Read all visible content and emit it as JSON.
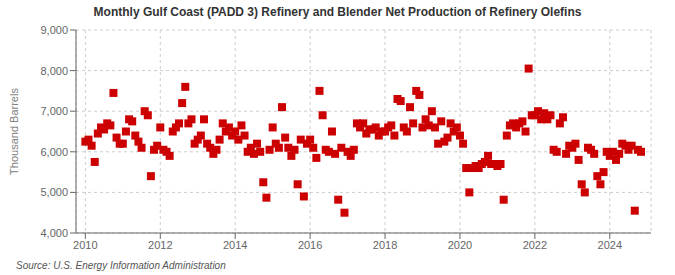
{
  "chart_data": {
    "type": "scatter",
    "title": "Monthly Gulf Coast (PADD 3) Refinery and Blender Net Production of Refinery Olefins",
    "y_label": "Thousand Barrels",
    "annotations": [
      "Source: U.S. Energy Information Administration"
    ],
    "color": "#cc0000",
    "marker": "square",
    "grid": true,
    "xlim": [
      2009.75,
      2025.1
    ],
    "xticks": [
      2010,
      2012,
      2014,
      2016,
      2018,
      2020,
      2022,
      2024
    ],
    "ylim": [
      4000,
      9000
    ],
    "yticks": [
      {
        "value": 4000,
        "label": "4,000"
      },
      {
        "value": 5000,
        "label": "5,000"
      },
      {
        "value": 6000,
        "label": "6,000"
      },
      {
        "value": 7000,
        "label": "7,000"
      },
      {
        "value": 8000,
        "label": "8,000"
      },
      {
        "value": 9000,
        "label": "9,000"
      }
    ],
    "x": [
      2010.0,
      2010.083,
      2010.167,
      2010.25,
      2010.333,
      2010.417,
      2010.5,
      2010.583,
      2010.667,
      2010.75,
      2010.833,
      2010.917,
      2011.0,
      2011.083,
      2011.167,
      2011.25,
      2011.333,
      2011.417,
      2011.5,
      2011.583,
      2011.667,
      2011.75,
      2011.833,
      2011.917,
      2012.0,
      2012.083,
      2012.167,
      2012.25,
      2012.333,
      2012.417,
      2012.5,
      2012.583,
      2012.667,
      2012.75,
      2012.833,
      2012.917,
      2013.0,
      2013.083,
      2013.167,
      2013.25,
      2013.333,
      2013.417,
      2013.5,
      2013.583,
      2013.667,
      2013.75,
      2013.833,
      2013.917,
      2014.0,
      2014.083,
      2014.167,
      2014.25,
      2014.333,
      2014.417,
      2014.5,
      2014.583,
      2014.667,
      2014.75,
      2014.833,
      2014.917,
      2015.0,
      2015.083,
      2015.167,
      2015.25,
      2015.333,
      2015.417,
      2015.5,
      2015.583,
      2015.667,
      2015.75,
      2015.833,
      2015.917,
      2016.0,
      2016.083,
      2016.167,
      2016.25,
      2016.333,
      2016.417,
      2016.5,
      2016.583,
      2016.667,
      2016.75,
      2016.833,
      2016.917,
      2017.0,
      2017.083,
      2017.167,
      2017.25,
      2017.333,
      2017.417,
      2017.5,
      2017.583,
      2017.667,
      2017.75,
      2017.833,
      2017.917,
      2018.0,
      2018.083,
      2018.167,
      2018.25,
      2018.333,
      2018.417,
      2018.5,
      2018.583,
      2018.667,
      2018.75,
      2018.833,
      2018.917,
      2019.0,
      2019.083,
      2019.167,
      2019.25,
      2019.333,
      2019.417,
      2019.5,
      2019.583,
      2019.667,
      2019.75,
      2019.833,
      2019.917,
      2020.0,
      2020.083,
      2020.167,
      2020.25,
      2020.333,
      2020.417,
      2020.5,
      2020.583,
      2020.667,
      2020.75,
      2020.833,
      2020.917,
      2021.0,
      2021.083,
      2021.167,
      2021.25,
      2021.333,
      2021.417,
      2021.5,
      2021.583,
      2021.667,
      2021.75,
      2021.833,
      2021.917,
      2022.0,
      2022.083,
      2022.167,
      2022.25,
      2022.333,
      2022.417,
      2022.5,
      2022.583,
      2022.667,
      2022.75,
      2022.833,
      2022.917,
      2023.0,
      2023.083,
      2023.167,
      2023.25,
      2023.333,
      2023.417,
      2023.5,
      2023.583,
      2023.667,
      2023.75,
      2023.833,
      2023.917,
      2024.0,
      2024.083,
      2024.167,
      2024.25,
      2024.333,
      2024.417,
      2024.5,
      2024.583,
      2024.667,
      2024.75,
      2024.833
    ],
    "values": [
      6250,
      6300,
      6150,
      5750,
      6450,
      6600,
      6550,
      6700,
      6650,
      7450,
      6350,
      6200,
      6200,
      6500,
      6800,
      6750,
      6400,
      6250,
      6100,
      7000,
      6900,
      5400,
      6050,
      6150,
      6600,
      6050,
      6000,
      5900,
      6500,
      6600,
      6700,
      7200,
      7600,
      6700,
      6800,
      6200,
      6300,
      6400,
      6800,
      6200,
      6100,
      5950,
      6050,
      6300,
      6700,
      6500,
      6600,
      6400,
      6500,
      6300,
      6650,
      6400,
      6000,
      6100,
      5950,
      6200,
      6000,
      5250,
      4870,
      6050,
      6600,
      6200,
      6100,
      7100,
      6350,
      6100,
      5900,
      6050,
      5200,
      6300,
      4900,
      6200,
      6300,
      6100,
      5850,
      7500,
      6900,
      6050,
      6000,
      6500,
      5950,
      4820,
      6100,
      4500,
      6000,
      5900,
      6050,
      6700,
      6600,
      6700,
      6450,
      6550,
      6550,
      6600,
      6400,
      6500,
      6500,
      6600,
      6650,
      6400,
      7300,
      7250,
      6600,
      6500,
      7100,
      6700,
      7500,
      7400,
      6600,
      6800,
      6650,
      7000,
      6600,
      6200,
      6750,
      6250,
      6350,
      6700,
      6500,
      6600,
      6400,
      6200,
      5600,
      5000,
      5600,
      5650,
      5600,
      5700,
      5750,
      5900,
      5700,
      5700,
      5650,
      5700,
      4820,
      6400,
      6650,
      6700,
      6600,
      6700,
      6750,
      6500,
      8050,
      6900,
      6900,
      7000,
      6800,
      6950,
      6800,
      6900,
      6050,
      6000,
      6700,
      6850,
      5950,
      6150,
      6100,
      6200,
      5800,
      5200,
      5000,
      6100,
      6050,
      5950,
      5400,
      5200,
      5500,
      6000,
      5900,
      6000,
      5800,
      5950,
      6200,
      6150,
      6050,
      6150,
      4550,
      6050,
      6000
    ]
  }
}
